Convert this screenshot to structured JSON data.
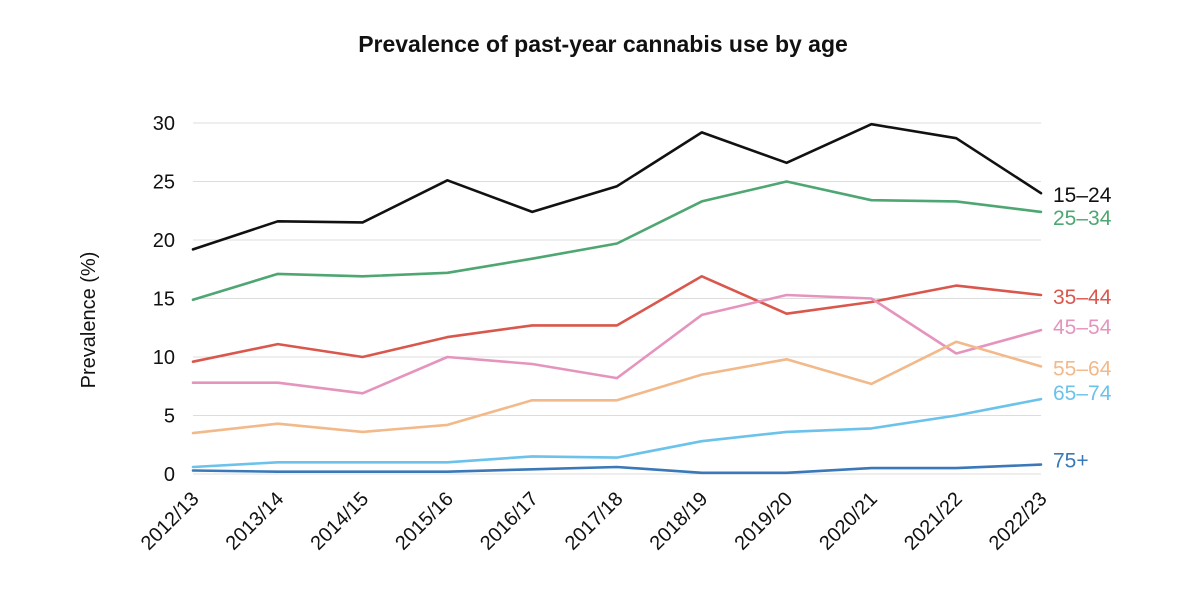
{
  "chart_data": {
    "type": "line",
    "title": "Prevalence of past-year cannabis use by age",
    "xlabel": "",
    "ylabel": "Prevalence (%)",
    "ylim": [
      0,
      30
    ],
    "y_ticks": [
      "0",
      "5",
      "10",
      "15",
      "20",
      "25",
      "30"
    ],
    "grid": true,
    "legend": "direct labels at right end of each line",
    "categories": [
      "2012/13",
      "2013/14",
      "2014/15",
      "2015/16",
      "2016/17",
      "2017/18",
      "2018/19",
      "2019/20",
      "2020/21",
      "2021/22",
      "2022/23"
    ],
    "series": [
      {
        "name": "15–24",
        "color": "#111111",
        "values": [
          19.2,
          21.6,
          21.5,
          25.1,
          22.4,
          24.6,
          29.2,
          26.6,
          29.9,
          28.7,
          24.0
        ]
      },
      {
        "name": "25–34",
        "color": "#4ea672",
        "values": [
          14.9,
          17.1,
          16.9,
          17.2,
          18.4,
          19.7,
          23.3,
          25.0,
          23.4,
          23.3,
          22.4
        ]
      },
      {
        "name": "35–44",
        "color": "#d9574c",
        "values": [
          9.6,
          11.1,
          10.0,
          11.7,
          12.7,
          12.7,
          16.9,
          13.7,
          14.7,
          16.1,
          15.3
        ]
      },
      {
        "name": "45–54",
        "color": "#e594bd",
        "values": [
          7.8,
          7.8,
          6.9,
          10.0,
          9.4,
          8.2,
          13.6,
          15.3,
          15.0,
          10.3,
          12.3
        ]
      },
      {
        "name": "55–64",
        "color": "#f2b98a",
        "values": [
          3.5,
          4.3,
          3.6,
          4.2,
          6.3,
          6.3,
          8.5,
          9.8,
          7.7,
          11.3,
          9.2
        ]
      },
      {
        "name": "65–74",
        "color": "#6bc2ea",
        "values": [
          0.6,
          1.0,
          1.0,
          1.0,
          1.5,
          1.4,
          2.8,
          3.6,
          3.9,
          5.0,
          6.4
        ]
      },
      {
        "name": "75+",
        "color": "#3a78b7",
        "values": [
          0.3,
          0.2,
          0.2,
          0.2,
          0.4,
          0.6,
          0.1,
          0.1,
          0.5,
          0.5,
          0.8
        ]
      }
    ]
  }
}
